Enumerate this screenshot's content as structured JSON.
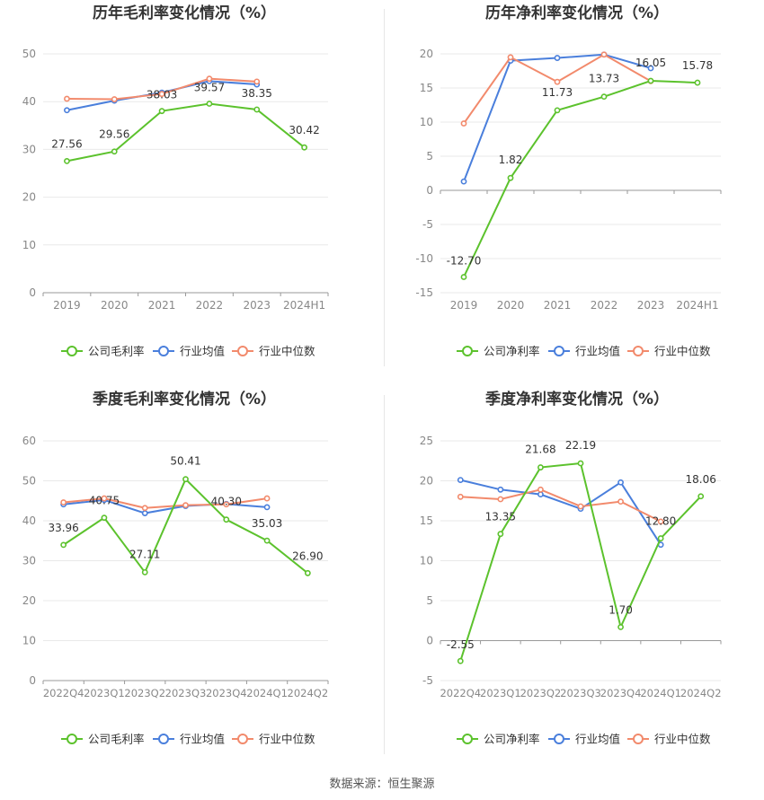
{
  "footer": {
    "source": "数据来源：恒生聚源"
  },
  "colors": {
    "company": "#5cc22d",
    "industry_avg": "#4a7fdc",
    "industry_median": "#f28a6c",
    "grid": "#e9e9e9",
    "axis_text": "#888888"
  },
  "chart_data": [
    {
      "id": "annual-gross",
      "type": "line",
      "title": "历年毛利率变化情况（%）",
      "categories": [
        "2019",
        "2020",
        "2021",
        "2022",
        "2023",
        "2024H1"
      ],
      "ylim": [
        0,
        50
      ],
      "yticks": [
        0,
        10,
        20,
        30,
        40,
        50
      ],
      "series": [
        {
          "name": "公司毛利率",
          "color": "#5cc22d",
          "labels": true,
          "values": [
            27.56,
            29.56,
            38.03,
            39.57,
            38.35,
            30.42
          ]
        },
        {
          "name": "行业均值",
          "color": "#4a7fdc",
          "labels": false,
          "values": [
            38.2,
            40.2,
            41.9,
            44.3,
            43.6,
            null
          ]
        },
        {
          "name": "行业中位数",
          "color": "#f28a6c",
          "labels": false,
          "values": [
            40.6,
            40.5,
            41.6,
            44.8,
            44.2,
            null
          ]
        }
      ]
    },
    {
      "id": "annual-net",
      "type": "line",
      "title": "历年净利率变化情况（%）",
      "categories": [
        "2019",
        "2020",
        "2021",
        "2022",
        "2023",
        "2024H1"
      ],
      "ylim": [
        -15,
        20
      ],
      "yticks": [
        -15,
        -10,
        -5,
        0,
        5,
        10,
        15,
        20
      ],
      "series": [
        {
          "name": "公司净利率",
          "color": "#5cc22d",
          "labels": true,
          "values": [
            -12.7,
            1.82,
            11.73,
            13.73,
            16.05,
            15.78
          ]
        },
        {
          "name": "行业均值",
          "color": "#4a7fdc",
          "labels": false,
          "values": [
            1.3,
            19.0,
            19.4,
            19.9,
            17.9,
            null
          ]
        },
        {
          "name": "行业中位数",
          "color": "#f28a6c",
          "labels": false,
          "values": [
            9.8,
            19.5,
            15.9,
            19.9,
            16.0,
            null
          ]
        }
      ]
    },
    {
      "id": "quarterly-gross",
      "type": "line",
      "title": "季度毛利率变化情况（%）",
      "categories": [
        "2022Q4",
        "2023Q1",
        "2023Q2",
        "2023Q3",
        "2023Q4",
        "2024Q1",
        "2024Q2"
      ],
      "ylim": [
        0,
        60
      ],
      "yticks": [
        0,
        10,
        20,
        30,
        40,
        50,
        60
      ],
      "series": [
        {
          "name": "公司毛利率",
          "color": "#5cc22d",
          "labels": true,
          "values": [
            33.96,
            40.75,
            27.11,
            50.41,
            40.3,
            35.03,
            26.9
          ]
        },
        {
          "name": "行业均值",
          "color": "#4a7fdc",
          "labels": false,
          "values": [
            44.1,
            45.2,
            41.9,
            43.7,
            44.2,
            43.4,
            null
          ]
        },
        {
          "name": "行业中位数",
          "color": "#f28a6c",
          "labels": false,
          "values": [
            44.6,
            45.6,
            43.2,
            43.9,
            44.1,
            45.6,
            null
          ]
        }
      ]
    },
    {
      "id": "quarterly-net",
      "type": "line",
      "title": "季度净利率变化情况（%）",
      "categories": [
        "2022Q4",
        "2023Q1",
        "2023Q2",
        "2023Q3",
        "2023Q4",
        "2024Q1",
        "2024Q2"
      ],
      "ylim": [
        -5,
        25
      ],
      "yticks": [
        -5,
        0,
        5,
        10,
        15,
        20,
        25
      ],
      "series": [
        {
          "name": "公司净利率",
          "color": "#5cc22d",
          "labels": true,
          "values": [
            -2.55,
            13.35,
            21.68,
            22.19,
            1.7,
            12.8,
            18.06
          ]
        },
        {
          "name": "行业均值",
          "color": "#4a7fdc",
          "labels": false,
          "values": [
            20.1,
            18.9,
            18.3,
            16.5,
            19.8,
            12.0,
            null
          ]
        },
        {
          "name": "行业中位数",
          "color": "#f28a6c",
          "labels": false,
          "values": [
            18.0,
            17.7,
            18.9,
            16.8,
            17.4,
            14.9,
            null
          ]
        }
      ]
    }
  ]
}
